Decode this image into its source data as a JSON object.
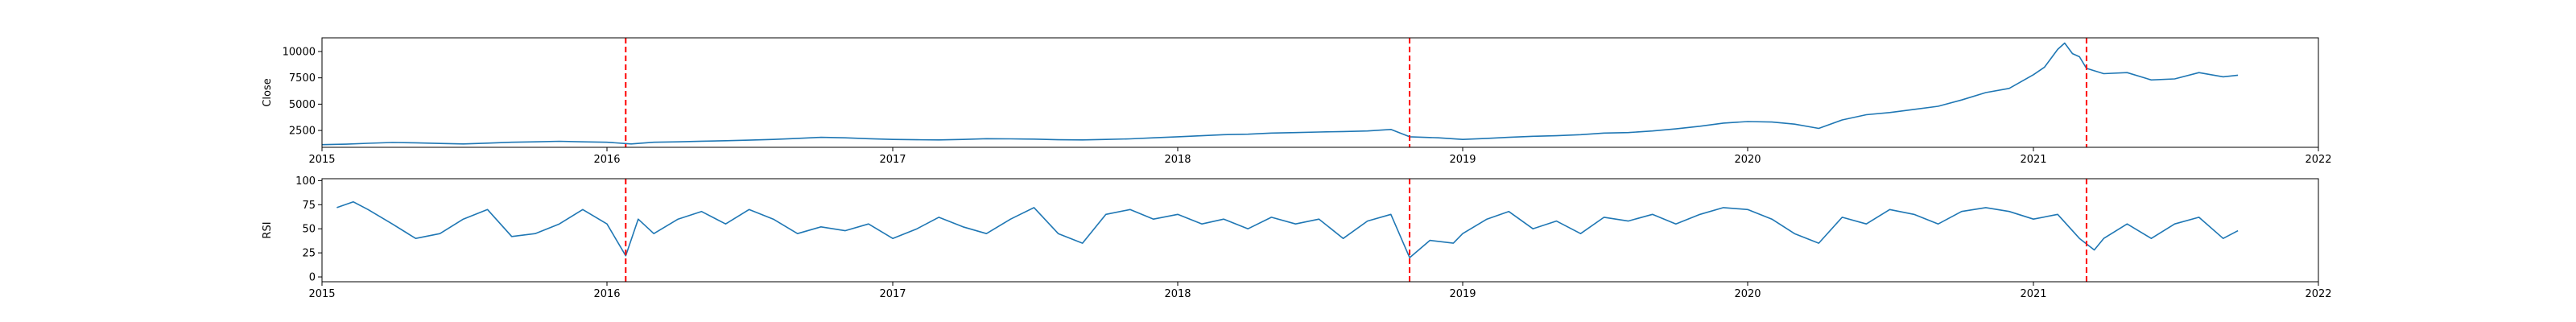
{
  "chart_data": [
    {
      "type": "line",
      "ylabel": "Close",
      "xlabel": "",
      "title": "",
      "xlim": [
        "2015-01-01",
        "2022-01-01"
      ],
      "ylim": [
        900,
        11300
      ],
      "x_ticks": [
        "2015",
        "2016",
        "2017",
        "2018",
        "2019",
        "2020",
        "2021",
        "2022"
      ],
      "y_ticks": [
        2500,
        5000,
        7500,
        10000
      ],
      "y_tick_labels": [
        "2500",
        "5000",
        "7500",
        "10000"
      ],
      "series": [
        {
          "color": "#1f77b4",
          "points": [
            [
              "2015-01-01",
              1150
            ],
            [
              "2015-02-01",
              1200
            ],
            [
              "2015-03-01",
              1280
            ],
            [
              "2015-04-01",
              1360
            ],
            [
              "2015-05-01",
              1330
            ],
            [
              "2015-06-01",
              1270
            ],
            [
              "2015-07-01",
              1220
            ],
            [
              "2015-08-01",
              1300
            ],
            [
              "2015-09-01",
              1380
            ],
            [
              "2015-10-01",
              1420
            ],
            [
              "2015-11-01",
              1470
            ],
            [
              "2015-12-01",
              1420
            ],
            [
              "2016-01-01",
              1380
            ],
            [
              "2016-02-01",
              1220
            ],
            [
              "2016-03-01",
              1380
            ],
            [
              "2016-04-01",
              1420
            ],
            [
              "2016-05-01",
              1480
            ],
            [
              "2016-06-01",
              1530
            ],
            [
              "2016-07-01",
              1580
            ],
            [
              "2016-08-01",
              1650
            ],
            [
              "2016-09-01",
              1750
            ],
            [
              "2016-10-01",
              1850
            ],
            [
              "2016-11-01",
              1800
            ],
            [
              "2016-12-01",
              1720
            ],
            [
              "2017-01-01",
              1650
            ],
            [
              "2017-02-01",
              1620
            ],
            [
              "2017-03-01",
              1600
            ],
            [
              "2017-04-01",
              1650
            ],
            [
              "2017-05-01",
              1720
            ],
            [
              "2017-06-01",
              1700
            ],
            [
              "2017-07-01",
              1680
            ],
            [
              "2017-08-01",
              1620
            ],
            [
              "2017-09-01",
              1600
            ],
            [
              "2017-10-01",
              1650
            ],
            [
              "2017-11-01",
              1700
            ],
            [
              "2017-12-01",
              1800
            ],
            [
              "2018-01-01",
              1900
            ],
            [
              "2018-02-01",
              2000
            ],
            [
              "2018-03-01",
              2100
            ],
            [
              "2018-04-01",
              2150
            ],
            [
              "2018-05-01",
              2250
            ],
            [
              "2018-06-01",
              2300
            ],
            [
              "2018-07-01",
              2350
            ],
            [
              "2018-08-01",
              2400
            ],
            [
              "2018-09-01",
              2450
            ],
            [
              "2018-10-01",
              2600
            ],
            [
              "2018-10-25",
              1900
            ],
            [
              "2018-12-01",
              1800
            ],
            [
              "2019-01-01",
              1650
            ],
            [
              "2019-02-01",
              1750
            ],
            [
              "2019-03-01",
              1850
            ],
            [
              "2019-04-01",
              1950
            ],
            [
              "2019-05-01",
              2000
            ],
            [
              "2019-06-01",
              2100
            ],
            [
              "2019-07-01",
              2250
            ],
            [
              "2019-08-01",
              2300
            ],
            [
              "2019-09-01",
              2450
            ],
            [
              "2019-10-01",
              2650
            ],
            [
              "2019-11-01",
              2900
            ],
            [
              "2019-12-01",
              3200
            ],
            [
              "2020-01-01",
              3350
            ],
            [
              "2020-02-01",
              3300
            ],
            [
              "2020-03-01",
              3100
            ],
            [
              "2020-04-01",
              2700
            ],
            [
              "2020-05-01",
              3500
            ],
            [
              "2020-06-01",
              4000
            ],
            [
              "2020-07-01",
              4200
            ],
            [
              "2020-08-01",
              4500
            ],
            [
              "2020-09-01",
              4800
            ],
            [
              "2020-10-01",
              5400
            ],
            [
              "2020-11-01",
              6100
            ],
            [
              "2020-12-01",
              6500
            ],
            [
              "2021-01-01",
              7800
            ],
            [
              "2021-01-15",
              8500
            ],
            [
              "2021-02-01",
              10200
            ],
            [
              "2021-02-10",
              10800
            ],
            [
              "2021-02-20",
              9800
            ],
            [
              "2021-03-01",
              9500
            ],
            [
              "2021-03-10",
              8400
            ],
            [
              "2021-04-01",
              7900
            ],
            [
              "2021-05-01",
              8000
            ],
            [
              "2021-06-01",
              7300
            ],
            [
              "2021-07-01",
              7400
            ],
            [
              "2021-08-01",
              8000
            ],
            [
              "2021-09-01",
              7600
            ],
            [
              "2021-09-20",
              7750
            ]
          ]
        }
      ],
      "vlines": [
        "2016-01-25",
        "2018-10-25",
        "2021-03-10"
      ],
      "vline_color": "#ff0000"
    },
    {
      "type": "line",
      "ylabel": "RSI",
      "xlabel": "",
      "title": "",
      "xlim": [
        "2015-01-01",
        "2022-01-01"
      ],
      "ylim": [
        -5,
        102
      ],
      "x_ticks": [
        "2015",
        "2016",
        "2017",
        "2018",
        "2019",
        "2020",
        "2021",
        "2022"
      ],
      "y_ticks": [
        0,
        25,
        50,
        75,
        100
      ],
      "y_tick_labels": [
        "0",
        "25",
        "50",
        "75",
        "100"
      ],
      "series": [
        {
          "color": "#1f77b4",
          "points": [
            [
              "2015-01-20",
              72
            ],
            [
              "2015-02-10",
              78
            ],
            [
              "2015-03-01",
              70
            ],
            [
              "2015-04-01",
              55
            ],
            [
              "2015-05-01",
              40
            ],
            [
              "2015-06-01",
              45
            ],
            [
              "2015-07-01",
              60
            ],
            [
              "2015-08-01",
              70
            ],
            [
              "2015-09-01",
              42
            ],
            [
              "2015-10-01",
              45
            ],
            [
              "2015-11-01",
              55
            ],
            [
              "2015-12-01",
              70
            ],
            [
              "2016-01-01",
              55
            ],
            [
              "2016-01-25",
              22
            ],
            [
              "2016-02-10",
              60
            ],
            [
              "2016-03-01",
              45
            ],
            [
              "2016-04-01",
              60
            ],
            [
              "2016-05-01",
              68
            ],
            [
              "2016-06-01",
              55
            ],
            [
              "2016-07-01",
              70
            ],
            [
              "2016-08-01",
              60
            ],
            [
              "2016-09-01",
              45
            ],
            [
              "2016-10-01",
              52
            ],
            [
              "2016-11-01",
              48
            ],
            [
              "2016-12-01",
              55
            ],
            [
              "2017-01-01",
              40
            ],
            [
              "2017-02-01",
              50
            ],
            [
              "2017-03-01",
              62
            ],
            [
              "2017-04-01",
              52
            ],
            [
              "2017-05-01",
              45
            ],
            [
              "2017-06-01",
              60
            ],
            [
              "2017-07-01",
              72
            ],
            [
              "2017-08-01",
              45
            ],
            [
              "2017-09-01",
              35
            ],
            [
              "2017-10-01",
              65
            ],
            [
              "2017-11-01",
              70
            ],
            [
              "2017-12-01",
              60
            ],
            [
              "2018-01-01",
              65
            ],
            [
              "2018-02-01",
              55
            ],
            [
              "2018-03-01",
              60
            ],
            [
              "2018-04-01",
              50
            ],
            [
              "2018-05-01",
              62
            ],
            [
              "2018-06-01",
              55
            ],
            [
              "2018-07-01",
              60
            ],
            [
              "2018-08-01",
              40
            ],
            [
              "2018-09-01",
              58
            ],
            [
              "2018-10-01",
              65
            ],
            [
              "2018-10-25",
              20
            ],
            [
              "2018-11-20",
              38
            ],
            [
              "2018-12-20",
              35
            ],
            [
              "2019-01-01",
              45
            ],
            [
              "2019-02-01",
              60
            ],
            [
              "2019-03-01",
              68
            ],
            [
              "2019-04-01",
              50
            ],
            [
              "2019-05-01",
              58
            ],
            [
              "2019-06-01",
              45
            ],
            [
              "2019-07-01",
              62
            ],
            [
              "2019-08-01",
              58
            ],
            [
              "2019-09-01",
              65
            ],
            [
              "2019-10-01",
              55
            ],
            [
              "2019-11-01",
              65
            ],
            [
              "2019-12-01",
              72
            ],
            [
              "2020-01-01",
              70
            ],
            [
              "2020-02-01",
              60
            ],
            [
              "2020-03-01",
              45
            ],
            [
              "2020-04-01",
              35
            ],
            [
              "2020-05-01",
              62
            ],
            [
              "2020-06-01",
              55
            ],
            [
              "2020-07-01",
              70
            ],
            [
              "2020-08-01",
              65
            ],
            [
              "2020-09-01",
              55
            ],
            [
              "2020-10-01",
              68
            ],
            [
              "2020-11-01",
              72
            ],
            [
              "2020-12-01",
              68
            ],
            [
              "2021-01-01",
              60
            ],
            [
              "2021-02-01",
              65
            ],
            [
              "2021-03-01",
              40
            ],
            [
              "2021-03-20",
              28
            ],
            [
              "2021-04-01",
              40
            ],
            [
              "2021-05-01",
              55
            ],
            [
              "2021-06-01",
              40
            ],
            [
              "2021-07-01",
              55
            ],
            [
              "2021-08-01",
              62
            ],
            [
              "2021-09-01",
              40
            ],
            [
              "2021-09-20",
              48
            ]
          ]
        }
      ],
      "vlines": [
        "2016-01-25",
        "2018-10-25",
        "2021-03-10"
      ],
      "vline_color": "#ff0000"
    }
  ]
}
